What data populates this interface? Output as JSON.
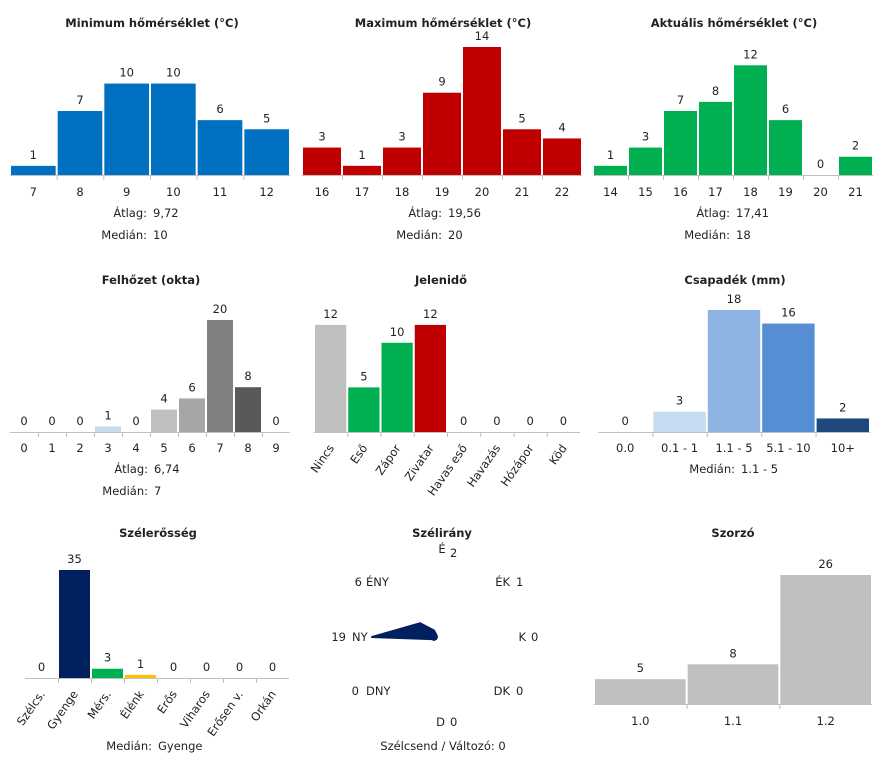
{
  "chart_data": [
    {
      "type": "bar",
      "title": "Minimum hőmérséklet (°C)",
      "categories": [
        "7",
        "8",
        "9",
        "10",
        "11",
        "12"
      ],
      "values": [
        1,
        7,
        10,
        10,
        6,
        5
      ],
      "colors": [
        "#0070c0",
        "#0070c0",
        "#0070c0",
        "#0070c0",
        "#0070c0",
        "#0070c0"
      ],
      "stats": [
        {
          "label": "Átlag:",
          "value": "9,72"
        },
        {
          "label": "Medián:",
          "value": "10"
        }
      ]
    },
    {
      "type": "bar",
      "title": "Maximum hőmérséklet (°C)",
      "categories": [
        "16",
        "17",
        "18",
        "19",
        "20",
        "21",
        "22"
      ],
      "values": [
        3,
        1,
        3,
        9,
        14,
        5,
        4
      ],
      "colors": [
        "#c00000",
        "#c00000",
        "#c00000",
        "#c00000",
        "#c00000",
        "#c00000",
        "#c00000"
      ],
      "stats": [
        {
          "label": "Átlag:",
          "value": "19,56"
        },
        {
          "label": "Medián:",
          "value": "20"
        }
      ]
    },
    {
      "type": "bar",
      "title": "Aktuális hőmérséklet (°C)",
      "categories": [
        "14",
        "15",
        "16",
        "17",
        "18",
        "19",
        "20",
        "21"
      ],
      "values": [
        1,
        3,
        7,
        8,
        12,
        6,
        0,
        2
      ],
      "colors": [
        "#00b050",
        "#00b050",
        "#00b050",
        "#00b050",
        "#00b050",
        "#00b050",
        "#00b050",
        "#00b050"
      ],
      "stats": [
        {
          "label": "Átlag:",
          "value": "17,41"
        },
        {
          "label": "Medián:",
          "value": "18"
        }
      ]
    },
    {
      "type": "bar",
      "title": "Felhőzet (okta)",
      "categories": [
        "0",
        "1",
        "2",
        "3",
        "4",
        "5",
        "6",
        "7",
        "8",
        "9"
      ],
      "values": [
        0,
        0,
        0,
        1,
        0,
        4,
        6,
        20,
        8,
        0
      ],
      "colors": [
        "#cfe3f5",
        "#cfe3f5",
        "#cfe3f5",
        "#c5dcf0",
        "#d9d9d9",
        "#bfbfbf",
        "#a6a6a6",
        "#808080",
        "#595959",
        "#404040"
      ],
      "stats": [
        {
          "label": "Átlag:",
          "value": "6,74"
        },
        {
          "label": "Medián:",
          "value": "7"
        }
      ]
    },
    {
      "type": "bar",
      "title": "Jelenidő",
      "categories": [
        "Nincs",
        "Eső",
        "Zápor",
        "Zivatar",
        "Havas eső",
        "Havazás",
        "Hózápor",
        "Köd"
      ],
      "values": [
        12,
        5,
        10,
        12,
        0,
        0,
        0,
        0
      ],
      "colors": [
        "#bfbfbf",
        "#00b050",
        "#00b050",
        "#c00000",
        "#bfbfbf",
        "#bfbfbf",
        "#bfbfbf",
        "#bfbfbf"
      ],
      "stats": []
    },
    {
      "type": "bar",
      "title": "Csapadék (mm)",
      "categories": [
        "0.0",
        "0.1 - 1",
        "1.1 - 5",
        "5.1 - 10",
        "10+"
      ],
      "values": [
        0,
        3,
        18,
        16,
        2
      ],
      "colors": [
        "#cfe3f5",
        "#c5dcf0",
        "#8db4e2",
        "#558ed5",
        "#1f497d"
      ],
      "stats": [
        {
          "label": "Medián:",
          "value": "1.1 - 5"
        }
      ]
    },
    {
      "type": "bar",
      "title": "Szélerősség",
      "categories": [
        "Szélcs.",
        "Gyenge",
        "Mérs.",
        "Élénk",
        "Erős",
        "Viharos",
        "Erősen v.",
        "Orkán"
      ],
      "values": [
        0,
        35,
        3,
        1,
        0,
        0,
        0,
        0
      ],
      "colors": [
        "#bfbfbf",
        "#002060",
        "#00b050",
        "#ffc000",
        "#bfbfbf",
        "#bfbfbf",
        "#bfbfbf",
        "#bfbfbf"
      ],
      "stats": [
        {
          "label": "Medián:",
          "value": "Gyenge"
        }
      ]
    },
    {
      "type": "radar",
      "title": "Szélirány",
      "directions": [
        "É",
        "ÉK",
        "K",
        "DK",
        "D",
        "DNY",
        "NY",
        "ÉNY"
      ],
      "values": [
        2,
        1,
        0,
        0,
        0,
        0,
        19,
        6
      ],
      "color": "#002060",
      "footer": "Szélcsend / Változó: 0"
    },
    {
      "type": "bar",
      "title": "Szorzó",
      "categories": [
        "1.0",
        "1.1",
        "1.2"
      ],
      "values": [
        5,
        8,
        26
      ],
      "colors": [
        "#bfbfbf",
        "#bfbfbf",
        "#bfbfbf"
      ],
      "stats": []
    }
  ]
}
